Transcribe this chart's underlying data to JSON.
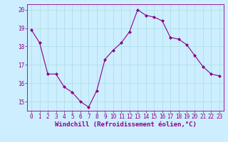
{
  "x": [
    0,
    1,
    2,
    3,
    4,
    5,
    6,
    7,
    8,
    9,
    10,
    11,
    12,
    13,
    14,
    15,
    16,
    17,
    18,
    19,
    20,
    21,
    22,
    23
  ],
  "y": [
    18.9,
    18.2,
    16.5,
    16.5,
    15.8,
    15.5,
    15.0,
    14.7,
    15.6,
    17.3,
    17.8,
    18.2,
    18.8,
    20.0,
    19.7,
    19.6,
    19.4,
    18.5,
    18.4,
    18.1,
    17.5,
    16.9,
    16.5,
    16.4
  ],
  "line_color": "#8b008b",
  "marker": "D",
  "marker_size": 2,
  "bg_color": "#cceeff",
  "grid_color": "#aadddd",
  "xlabel": "Windchill (Refroidissement éolien,°C)",
  "ylim": [
    14.5,
    20.3
  ],
  "yticks": [
    15,
    16,
    17,
    18,
    19,
    20
  ],
  "xticks": [
    0,
    1,
    2,
    3,
    4,
    5,
    6,
    7,
    8,
    9,
    10,
    11,
    12,
    13,
    14,
    15,
    16,
    17,
    18,
    19,
    20,
    21,
    22,
    23
  ],
  "tick_color": "#8b008b",
  "tick_fontsize": 5.5,
  "xlabel_fontsize": 6.5,
  "linewidth": 0.8
}
